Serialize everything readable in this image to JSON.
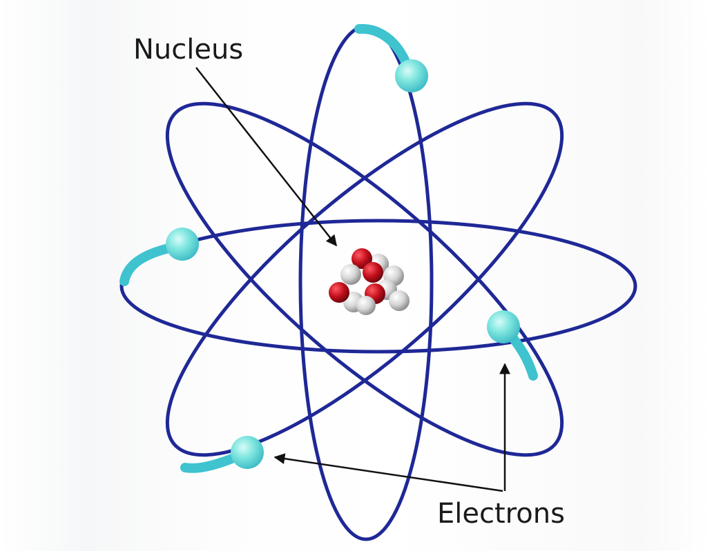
{
  "labels": {
    "nucleus": "Nucleus",
    "electrons": "Electrons"
  },
  "colors": {
    "orbit": "#1f2896",
    "electron": "#6fe0dc",
    "electron_trail": "#3ec3cf",
    "proton": "#c4101c",
    "neutron": "#dcdcdc",
    "arrow": "#111111",
    "label": "#1a1a1a"
  }
}
